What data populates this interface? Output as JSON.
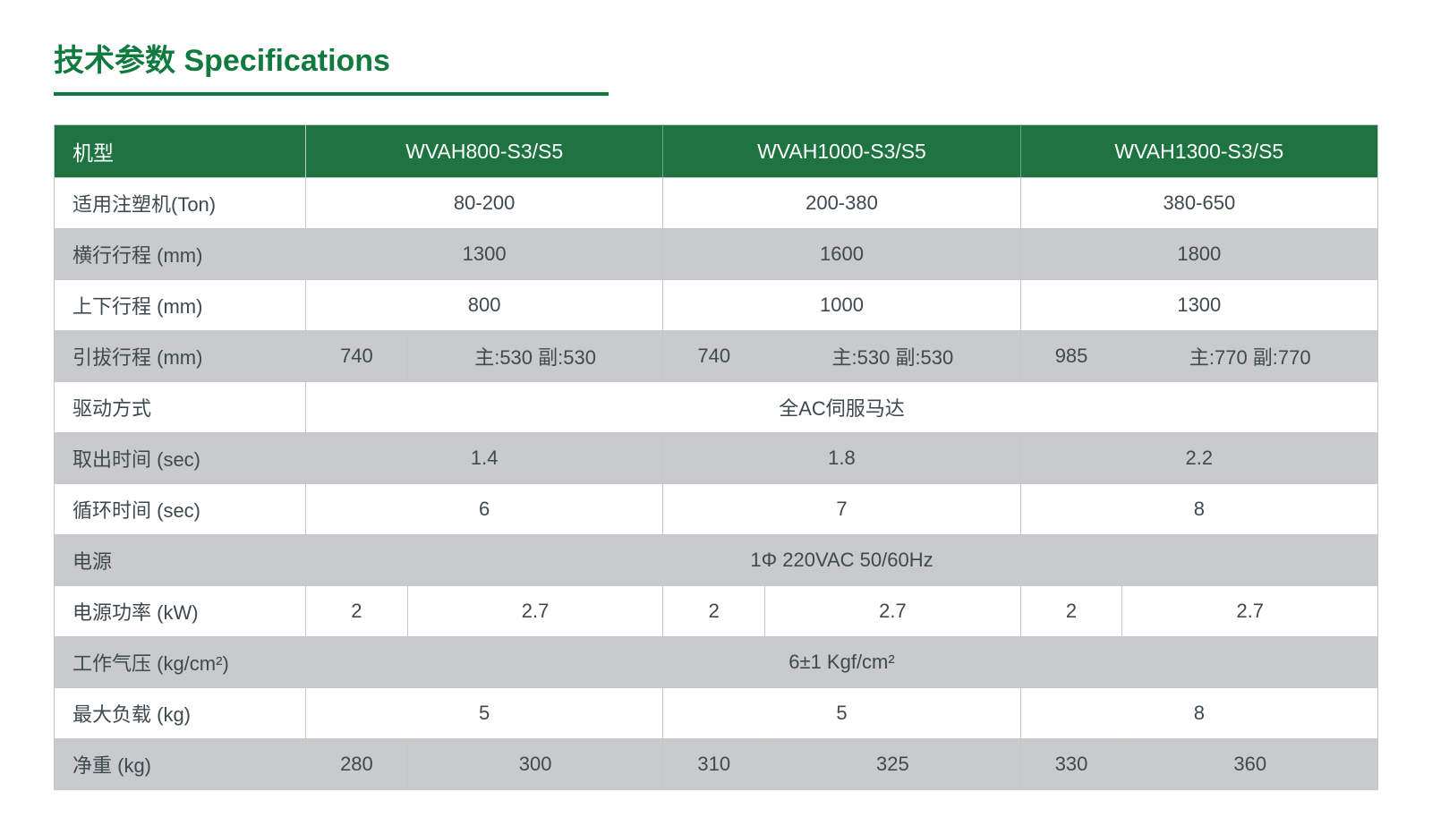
{
  "title_cn": "技术参数",
  "title_en": "Specifications",
  "colors": {
    "header_bg": "#1e7340",
    "header_text": "#ffffff",
    "title_text": "#117b3f",
    "underline": "#117b3f",
    "cell_text": "#3e4a50",
    "alt_row_bg": "#c8cacb",
    "white_row_bg": "#ffffff",
    "border": "#c5c8c7"
  },
  "table": {
    "headers": [
      "机型",
      "WVAH800-S3/S5",
      "WVAH1000-S3/S5",
      "WVAH1300-S3/S5"
    ],
    "rows": [
      {
        "label": "适用注塑机(Ton)",
        "alt": false,
        "cells": [
          {
            "span": 2,
            "value": "80-200"
          },
          {
            "span": 2,
            "value": "200-380"
          },
          {
            "span": 2,
            "value": "380-650"
          }
        ]
      },
      {
        "label": "横行行程 (mm)",
        "alt": true,
        "cells": [
          {
            "span": 2,
            "value": "1300"
          },
          {
            "span": 2,
            "value": "1600"
          },
          {
            "span": 2,
            "value": "1800"
          }
        ]
      },
      {
        "label": "上下行程 (mm)",
        "alt": false,
        "cells": [
          {
            "span": 2,
            "value": "800"
          },
          {
            "span": 2,
            "value": "1000"
          },
          {
            "span": 2,
            "value": "1300"
          }
        ]
      },
      {
        "label": "引拔行程 (mm)",
        "alt": true,
        "cells": [
          {
            "span": 1,
            "value": "740"
          },
          {
            "span": 1,
            "value": "主:530 副:530"
          },
          {
            "span": 1,
            "value": "740"
          },
          {
            "span": 1,
            "value": "主:530 副:530"
          },
          {
            "span": 1,
            "value": "985"
          },
          {
            "span": 1,
            "value": "主:770 副:770"
          }
        ]
      },
      {
        "label": "驱动方式",
        "alt": false,
        "cells": [
          {
            "span": 6,
            "value": "全AC伺服马达"
          }
        ]
      },
      {
        "label": "取出时间 (sec)",
        "alt": true,
        "cells": [
          {
            "span": 2,
            "value": "1.4"
          },
          {
            "span": 2,
            "value": "1.8"
          },
          {
            "span": 2,
            "value": "2.2"
          }
        ]
      },
      {
        "label": "循环时间 (sec)",
        "alt": false,
        "cells": [
          {
            "span": 2,
            "value": "6"
          },
          {
            "span": 2,
            "value": "7"
          },
          {
            "span": 2,
            "value": "8"
          }
        ]
      },
      {
        "label": "电源",
        "alt": true,
        "cells": [
          {
            "span": 6,
            "value": "1Φ 220VAC 50/60Hz"
          }
        ]
      },
      {
        "label": "电源功率 (kW)",
        "alt": false,
        "cells": [
          {
            "span": 1,
            "value": "2"
          },
          {
            "span": 1,
            "value": "2.7"
          },
          {
            "span": 1,
            "value": "2"
          },
          {
            "span": 1,
            "value": "2.7"
          },
          {
            "span": 1,
            "value": "2"
          },
          {
            "span": 1,
            "value": "2.7"
          }
        ]
      },
      {
        "label": "工作气压 (kg/cm²)",
        "alt": true,
        "cells": [
          {
            "span": 6,
            "value": "6±1 Kgf/cm²"
          }
        ]
      },
      {
        "label": "最大负载 (kg)",
        "alt": false,
        "cells": [
          {
            "span": 2,
            "value": "5"
          },
          {
            "span": 2,
            "value": "5"
          },
          {
            "span": 2,
            "value": "8"
          }
        ]
      },
      {
        "label": "净重 (kg)",
        "alt": true,
        "cells": [
          {
            "span": 1,
            "value": "280"
          },
          {
            "span": 1,
            "value": "300"
          },
          {
            "span": 1,
            "value": "310"
          },
          {
            "span": 1,
            "value": "325"
          },
          {
            "span": 1,
            "value": "330"
          },
          {
            "span": 1,
            "value": "360"
          }
        ]
      }
    ]
  }
}
